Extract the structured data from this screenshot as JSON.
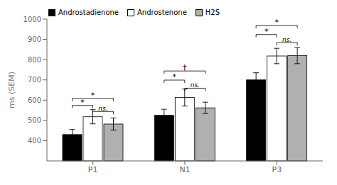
{
  "chart_data": {
    "type": "bar",
    "categories": [
      "P1",
      "N1",
      "P3"
    ],
    "series": [
      {
        "name": "Androstadienone",
        "color": "#000000",
        "values": [
          430,
          525,
          700
        ],
        "errors": [
          25,
          30,
          35
        ]
      },
      {
        "name": "Androstenone",
        "color": "#ffffff",
        "values": [
          518,
          613,
          818
        ],
        "errors": [
          35,
          42,
          38
        ]
      },
      {
        "name": "H2S",
        "color": "#b0b0b0",
        "values": [
          482,
          562,
          820
        ],
        "errors": [
          30,
          28,
          40
        ]
      }
    ],
    "ylabel": "ms (SEM)",
    "ylim": [
      300,
      1000
    ],
    "yticks": [
      400,
      500,
      600,
      700,
      800,
      900,
      1000
    ],
    "grid": false,
    "legend": "upper left",
    "annotations": [
      {
        "group": "P1",
        "from": "Androstadienone",
        "to": "Androstenone",
        "y": 560,
        "label": "*"
      },
      {
        "group": "P1",
        "from": "Androstadienone",
        "to": "H2S",
        "y": 595,
        "label": "*"
      },
      {
        "group": "P1",
        "from": "Androstenone",
        "to": "H2S",
        "y": 530,
        "label": "ns."
      },
      {
        "group": "N1",
        "from": "Androstadienone",
        "to": "Androstenone",
        "y": 685,
        "label": "*"
      },
      {
        "group": "N1",
        "from": "Androstadienone",
        "to": "H2S",
        "y": 730,
        "label": "†"
      },
      {
        "group": "N1",
        "from": "Androstenone",
        "to": "H2S",
        "y": 645,
        "label": "ns."
      },
      {
        "group": "P3",
        "from": "Androstadienone",
        "to": "Androstenone",
        "y": 910,
        "label": "*"
      },
      {
        "group": "P3",
        "from": "Androstadienone",
        "to": "H2S",
        "y": 955,
        "label": "*"
      },
      {
        "group": "P3",
        "from": "Androstenone",
        "to": "H2S",
        "y": 870,
        "label": "ns."
      }
    ]
  }
}
